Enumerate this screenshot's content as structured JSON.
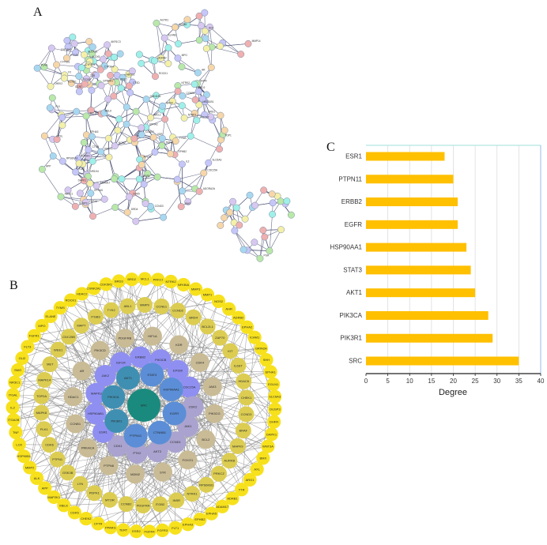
{
  "panels": {
    "a": "A",
    "b": "B",
    "c": "C"
  },
  "network_a": {
    "edge_color": "#3a3f66",
    "node_colors": [
      "#9ff0e8",
      "#b9e8a8",
      "#c6c6f8",
      "#f7d6a8",
      "#f4f0a8",
      "#f0b0b0",
      "#a8d8f0",
      "#d8c8f0"
    ],
    "labels": [
      "TOP1",
      "TOP2A",
      "HSD11B2",
      "GPBAR1",
      "HSD11B1",
      "NR1H4",
      "EPHA1",
      "EPHB2",
      "EPHA2",
      "EPHA3",
      "EPHA5",
      "NTRK2",
      "NTRK3",
      "ADAM17",
      "IL2",
      "MELK",
      "DHFR",
      "TYMS",
      "ABCG2",
      "ABCC1",
      "F2",
      "F10",
      "SLC6A3",
      "ADORA2A",
      "DRD2",
      "DRD4",
      "CCNB3",
      "WEE1",
      "CCNE1",
      "CTSL",
      "CTSB",
      "CTSD",
      "CCND3",
      "CDC25A",
      "CCND2",
      "TRPV1",
      "CHEK2",
      "CDK5",
      "GLI2",
      "SMO",
      "APEX1",
      "VDR",
      "PARP1",
      "APP",
      "DAPK1",
      "TTR",
      "RPS6KA3",
      "DUSP3",
      "CCR4",
      "CCR1",
      "BRD4",
      "BCL2L1",
      "MCL1",
      "NOS2",
      "ARG1",
      "ROCK1",
      "ROCK2",
      "PTGS1",
      "PTGS2",
      "ALOX5",
      "ALOX15",
      "AKR1C3",
      "CYP19A1",
      "CYP3A4",
      "CYP2C9",
      "CYP1B1",
      "PLAU",
      "AGTR1",
      "ACE",
      "ELANE",
      "MPO",
      "MMP14",
      "ADRB2",
      "ADRB1",
      "AR",
      "PGR"
    ]
  },
  "network_b": {
    "edge_color": "#8a8a8a",
    "rings": [
      {
        "color": "#f7e11c",
        "nodes": [
          "BRD3",
          "BRD2",
          "MCL1",
          "PRKCI",
          "NTRK2",
          "NFKBIA",
          "MMP3",
          "MMP1",
          "NOS2",
          "AHR",
          "ADRB2",
          "EPHA2",
          "ICAM1",
          "GRIN2A",
          "SHH",
          "EPHA1",
          "EGLN1",
          "SLC6A3",
          "DUSP3",
          "DHFR",
          "DAPK1",
          "WNT3A",
          "BMX",
          "AXL",
          "ARG1",
          "TTR",
          "ADRB1",
          "ADAM17",
          "EPHA5",
          "EPHB2",
          "EPHA3",
          "FLT1",
          "FGFR3",
          "FGFR4",
          "ESR2",
          "TERT",
          "PPARG",
          "CFTR",
          "CHEK2",
          "CDK5",
          "MELK",
          "MAP2K1",
          "APP",
          "ALK",
          "MMP2",
          "HSP90B1",
          "LCK",
          "TNF",
          "ITGA2B",
          "IL2",
          "ITGAL",
          "NR3C1",
          "SMO",
          "GLI2",
          "FLT3",
          "FGFR1",
          "MPO",
          "ELANE",
          "TYMS",
          "ROCK1",
          "HDAC2",
          "CSNK2A1",
          "CDK5R1"
        ]
      },
      {
        "color": "#dccd52",
        "nodes": [
          "ITGB3",
          "TYK2",
          "ABL1",
          "MMP9",
          "CCNE1",
          "CCND2",
          "BRD4",
          "BCL2L1",
          "ZAP70",
          "KIT",
          "IL6ST",
          "HDAC6",
          "CHEK1",
          "CCND3",
          "BRAF",
          "MAPK9",
          "AURKB",
          "PRKCZ",
          "RPS6KB1",
          "NTRK1",
          "INSR",
          "ITGB2",
          "PDGFRA",
          "CCNB2",
          "MTOR",
          "PDPK1",
          "LYN",
          "GSK3B",
          "PTPN1",
          "CDK6",
          "PLK1",
          "MAPK8",
          "TOP2A",
          "MAPK14",
          "MET",
          "WEE1",
          "CDC25B",
          "MAPT"
        ]
      },
      {
        "color": "#c9bb95",
        "nodes": [
          "PIK3CD",
          "PDGFRB",
          "HIF1A",
          "KDR",
          "CDK4",
          "JAK3",
          "PIK3CG",
          "BCL2",
          "FOXO1",
          "SYK",
          "MDM2",
          "PTPN6",
          "PRKACA",
          "CCNB1",
          "HDAC1",
          "AR"
        ]
      },
      {
        "color": "#8f8ff2",
        "alt_color": "#aaa3cf",
        "alt_nodes": [
          "CDK2",
          "JAK1",
          "CCND1",
          "AKT2",
          "PTK2",
          "CDK1"
        ],
        "nodes": [
          "IGF1R",
          "ERBB2",
          "PIK3CB",
          "EP300",
          "CDC25A",
          "CDK2",
          "JAK1",
          "CCND1",
          "AKT2",
          "PTK2",
          "CDK1",
          "ESR1",
          "HSP90AB1",
          "MAPK3",
          "JAK2"
        ]
      },
      {
        "color": "#5b8ed6",
        "alt_color": "#3f8fb2",
        "alt_nodes": [
          "PIK3CA",
          "PIK3R1",
          "AKT1"
        ],
        "nodes": [
          "STAT3",
          "HSP90AA1",
          "EGFR",
          "CTNNB1",
          "PTPN11",
          "PIK3R1",
          "PIK3CA",
          "AKT1"
        ]
      }
    ],
    "center": {
      "label": "SRC",
      "color": "#1a8a7e"
    }
  },
  "chart_data": {
    "type": "bar",
    "orientation": "horizontal",
    "categories": [
      "ESR1",
      "PTPN11",
      "ERBB2",
      "EGFR",
      "HSP90AA1",
      "STAT3",
      "AKT1",
      "PIK3CA",
      "PIK3R1",
      "SRC"
    ],
    "values": [
      18,
      20,
      21,
      21,
      23,
      24,
      25,
      28,
      29,
      35
    ],
    "xlabel": "Degree",
    "ylabel": "",
    "xlim": [
      0,
      40
    ],
    "xticks": [
      0,
      5,
      10,
      15,
      20,
      25,
      30,
      35,
      40
    ],
    "grid": "vertical",
    "bar_color": "#ffc000"
  }
}
